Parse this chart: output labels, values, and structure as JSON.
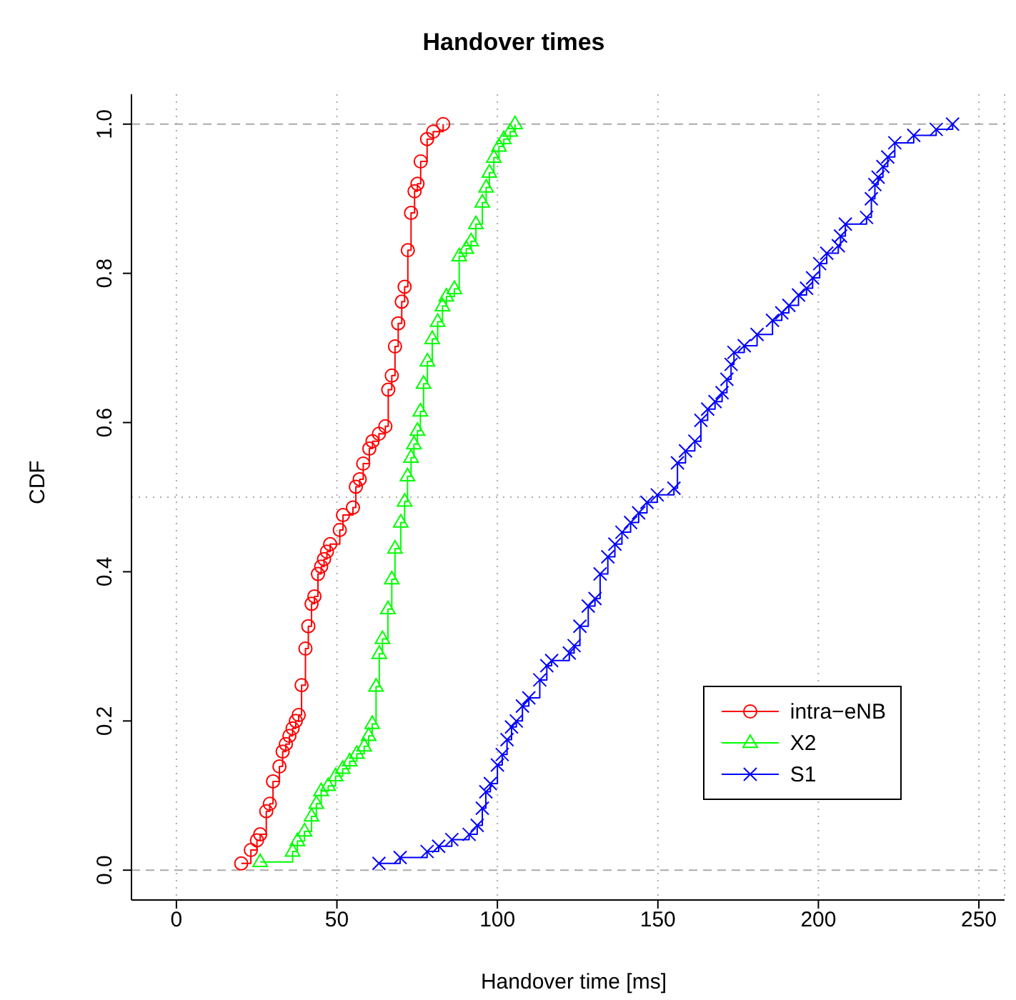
{
  "chart_data": {
    "type": "step",
    "title": "Handover times",
    "xlabel": "Handover time [ms]",
    "ylabel": "CDF",
    "xlim": [
      -14,
      258
    ],
    "xticks": [
      0,
      50,
      100,
      150,
      200,
      250
    ],
    "ylim": [
      -0.04,
      1.04
    ],
    "yticks": [
      {
        "value": 0,
        "label": "0.0"
      },
      0.2,
      0.4,
      0.6,
      0.8,
      {
        "value": 1,
        "label": "1.0"
      }
    ],
    "grid": "x",
    "legend": "bottom right",
    "line_style": "solid",
    "ref_lines": [
      {
        "axis": "y",
        "value": 0,
        "color": "#aaaaaa",
        "line_style": "dashed"
      },
      {
        "axis": "y",
        "value": 0.5,
        "color": "#aaaaaa",
        "line_style": "dotted"
      },
      {
        "axis": "y",
        "value": 1,
        "color": "#aaaaaa",
        "line_style": "dashed"
      }
    ],
    "series": [
      {
        "name": "intra−eNB",
        "color": "#ff0000",
        "marker": "circle",
        "x": [
          20.2,
          23.2,
          25.1,
          26.1,
          28.0,
          29.1,
          30.1,
          32.1,
          33.1,
          34.1,
          35.2,
          36.2,
          37.2,
          38.1,
          39.0,
          40.2,
          41.1,
          42.1,
          43.0,
          44.1,
          45.1,
          46.0,
          46.9,
          47.9,
          50.9,
          51.9,
          55.0,
          55.9,
          57.1,
          58.2,
          60.1,
          61.1,
          63.1,
          65.1,
          66.0,
          67.1,
          68.1,
          69.1,
          70.2,
          71.1,
          72.1,
          73.1,
          74.2,
          75.1,
          76.1,
          78.1,
          80.0,
          83.1
        ],
        "values": [
          0.009,
          0.027,
          0.04,
          0.048,
          0.079,
          0.089,
          0.119,
          0.139,
          0.159,
          0.169,
          0.18,
          0.19,
          0.2,
          0.208,
          0.248,
          0.297,
          0.327,
          0.357,
          0.367,
          0.397,
          0.407,
          0.417,
          0.427,
          0.437,
          0.456,
          0.476,
          0.486,
          0.514,
          0.524,
          0.545,
          0.565,
          0.575,
          0.585,
          0.595,
          0.644,
          0.663,
          0.702,
          0.733,
          0.762,
          0.782,
          0.831,
          0.881,
          0.91,
          0.92,
          0.95,
          0.98,
          0.99,
          1.0
        ]
      },
      {
        "name": "X2",
        "color": "#00ff00",
        "marker": "triangle",
        "x": [
          26.1,
          36.2,
          37.7,
          39.9,
          42.1,
          43.6,
          45.1,
          47.3,
          49.6,
          51.8,
          54.0,
          56.2,
          58.5,
          59.9,
          61.0,
          62.2,
          63.2,
          64.2,
          65.9,
          67.1,
          68.1,
          69.9,
          71.1,
          72.0,
          73.1,
          74.0,
          75.1,
          76.0,
          77.0,
          78.2,
          79.7,
          81.4,
          82.9,
          84.1,
          86.6,
          88.1,
          90.3,
          91.8,
          93.3,
          95.3,
          96.5,
          97.5,
          98.9,
          100.5,
          102.0,
          104.0,
          105.5
        ],
        "values": [
          0.011,
          0.025,
          0.039,
          0.052,
          0.072,
          0.089,
          0.106,
          0.113,
          0.126,
          0.136,
          0.146,
          0.156,
          0.166,
          0.18,
          0.196,
          0.246,
          0.29,
          0.31,
          0.35,
          0.39,
          0.431,
          0.466,
          0.494,
          0.528,
          0.553,
          0.571,
          0.589,
          0.615,
          0.652,
          0.682,
          0.712,
          0.735,
          0.756,
          0.769,
          0.779,
          0.823,
          0.833,
          0.843,
          0.866,
          0.895,
          0.915,
          0.935,
          0.955,
          0.97,
          0.98,
          0.99,
          1.0
        ]
      },
      {
        "name": "S1",
        "color": "#0000ff",
        "marker": "cross",
        "x": [
          63.1,
          69.7,
          78.1,
          81.7,
          85.8,
          91.2,
          93.7,
          95.3,
          96.4,
          97.8,
          100.0,
          101.5,
          103.0,
          104.4,
          105.9,
          107.8,
          109.8,
          113.2,
          115.4,
          116.9,
          122.4,
          123.9,
          125.7,
          128.3,
          130.4,
          132.0,
          134.4,
          136.6,
          138.8,
          141.5,
          144.0,
          146.6,
          149.8,
          155.0,
          156.1,
          158.6,
          161.5,
          163.4,
          165.5,
          167.8,
          170.0,
          171.5,
          172.8,
          173.7,
          176.9,
          180.9,
          185.7,
          188.6,
          190.8,
          193.8,
          196.3,
          198.2,
          200.4,
          202.6,
          206.2,
          206.9,
          208.4,
          215.0,
          216.5,
          217.6,
          218.6,
          220.1,
          221.6,
          223.8,
          229.7,
          236.7,
          241.8
        ],
        "values": [
          0.009,
          0.017,
          0.025,
          0.032,
          0.041,
          0.048,
          0.06,
          0.083,
          0.105,
          0.116,
          0.141,
          0.155,
          0.175,
          0.192,
          0.2,
          0.22,
          0.231,
          0.255,
          0.274,
          0.281,
          0.291,
          0.301,
          0.327,
          0.354,
          0.364,
          0.397,
          0.42,
          0.437,
          0.453,
          0.466,
          0.479,
          0.493,
          0.503,
          0.512,
          0.546,
          0.562,
          0.575,
          0.603,
          0.618,
          0.628,
          0.64,
          0.658,
          0.678,
          0.694,
          0.703,
          0.718,
          0.737,
          0.747,
          0.757,
          0.771,
          0.78,
          0.794,
          0.813,
          0.827,
          0.837,
          0.85,
          0.866,
          0.875,
          0.9,
          0.919,
          0.929,
          0.943,
          0.956,
          0.975,
          0.985,
          0.993,
          1.0
        ]
      }
    ]
  }
}
